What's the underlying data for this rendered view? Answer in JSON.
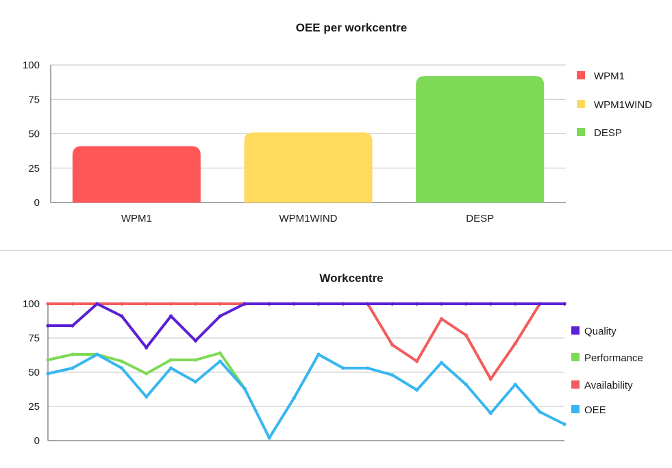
{
  "chart_data": [
    {
      "type": "bar",
      "title": "OEE per workcentre",
      "categories": [
        "WPM1",
        "WPM1WIND",
        "DESP"
      ],
      "values": [
        41,
        51,
        92
      ],
      "colors": [
        "#ff5757",
        "#ffda5c",
        "#7ed957"
      ],
      "ylim": [
        0,
        100
      ],
      "yticks": [
        0,
        25,
        50,
        75,
        100
      ],
      "grid": true,
      "legend": {
        "placement": "right",
        "entries": [
          {
            "label": "WPM1",
            "color": "#ff5757"
          },
          {
            "label": "WPM1WIND",
            "color": "#ffda5c"
          },
          {
            "label": "DESP",
            "color": "#7ed957"
          }
        ]
      }
    },
    {
      "type": "line",
      "title": "Workcentre",
      "x": [
        1,
        2,
        3,
        4,
        5,
        6,
        7,
        8,
        9,
        10,
        11,
        12,
        13,
        14,
        15,
        16,
        17,
        18,
        19,
        20,
        21,
        22
      ],
      "ylim": [
        0,
        100
      ],
      "yticks": [
        0,
        25,
        50,
        75,
        100
      ],
      "grid": true,
      "series": [
        {
          "name": "Availability",
          "color": "#f25c5c",
          "values": [
            100,
            100,
            100,
            100,
            100,
            100,
            100,
            100,
            100,
            100,
            100,
            100,
            100,
            100,
            70,
            58,
            89,
            77,
            45,
            71,
            100,
            100
          ]
        },
        {
          "name": "Quality",
          "color": "#5b1fd6",
          "values": [
            84,
            84,
            100,
            91,
            68,
            91,
            73,
            91,
            100,
            100,
            100,
            100,
            100,
            100,
            100,
            100,
            100,
            100,
            100,
            100,
            100,
            100
          ]
        },
        {
          "name": "Performance",
          "color": "#7ed957",
          "values": [
            59,
            63,
            63,
            58,
            49,
            59,
            59,
            64,
            38,
            null,
            null,
            null,
            null,
            null,
            null,
            null,
            null,
            null,
            null,
            null,
            null,
            null
          ]
        },
        {
          "name": "OEE",
          "color": "#38b6f0",
          "values": [
            49,
            53,
            63,
            53,
            32,
            53,
            43,
            58,
            38,
            2,
            31,
            63,
            53,
            53,
            48,
            37,
            57,
            41,
            20,
            41,
            21,
            12
          ]
        }
      ],
      "legend": {
        "placement": "right",
        "entries": [
          {
            "label": "Quality",
            "color": "#5b1fd6"
          },
          {
            "label": "Performance",
            "color": "#7ed957"
          },
          {
            "label": "Availability",
            "color": "#f25c5c"
          },
          {
            "label": "OEE",
            "color": "#38b6f0"
          }
        ]
      }
    }
  ]
}
